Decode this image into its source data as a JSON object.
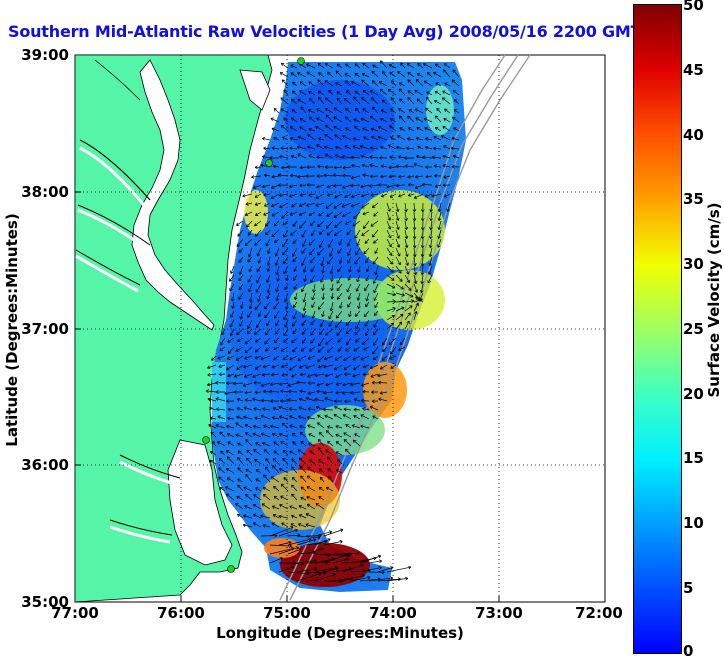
{
  "title": "Southern Mid-Atlantic Raw Velocities (1 Day Avg) 2008/05/16 2200 GMT",
  "x_axis": {
    "label": "Longitude (Degrees:Minutes)",
    "ticks": [
      "77:00",
      "76:00",
      "75:00",
      "74:00",
      "73:00",
      "72:00"
    ]
  },
  "y_axis": {
    "label": "Latitude (Degrees:Minutes)",
    "ticks": [
      "39:00",
      "38:00",
      "37:00",
      "36:00",
      "35:00"
    ]
  },
  "colorbar": {
    "label": "Surface Velocity (cm/s)",
    "ticks": [
      "50",
      "45",
      "40",
      "35",
      "30",
      "25",
      "20",
      "15",
      "10",
      "5",
      "0"
    ],
    "range": [
      0,
      50
    ]
  },
  "colors": {
    "land": "#55f5a8",
    "coast_outline": "#000000",
    "bathymetry": "#9a9a9a",
    "station_marker": "#20d020",
    "title": "#1010e0"
  },
  "extent": {
    "lon": [
      -77,
      -72
    ],
    "lat": [
      35,
      39
    ]
  }
}
